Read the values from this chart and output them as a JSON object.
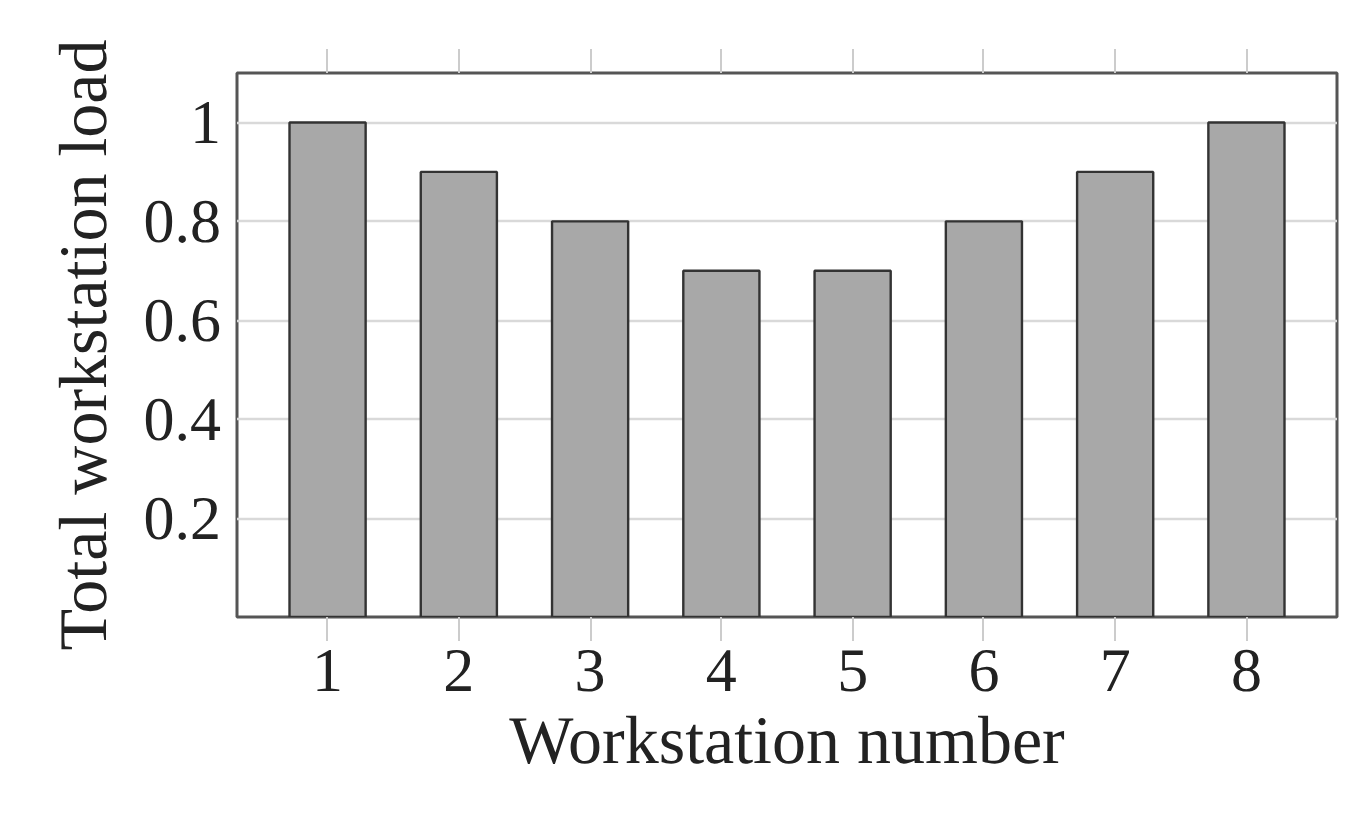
{
  "chart_data": {
    "type": "bar",
    "xlabel": "Workstation number",
    "ylabel": "Total workstation load",
    "categories": [
      "1",
      "2",
      "3",
      "4",
      "5",
      "6",
      "7",
      "8"
    ],
    "values": [
      1,
      0.9,
      0.8,
      0.7,
      0.7,
      0.8,
      0.9,
      1
    ],
    "color": "#a8a8a8",
    "ylim": [
      0,
      1.1
    ],
    "yticks": [
      0.2,
      0.4,
      0.6,
      0.8,
      1
    ],
    "grid": "y"
  }
}
